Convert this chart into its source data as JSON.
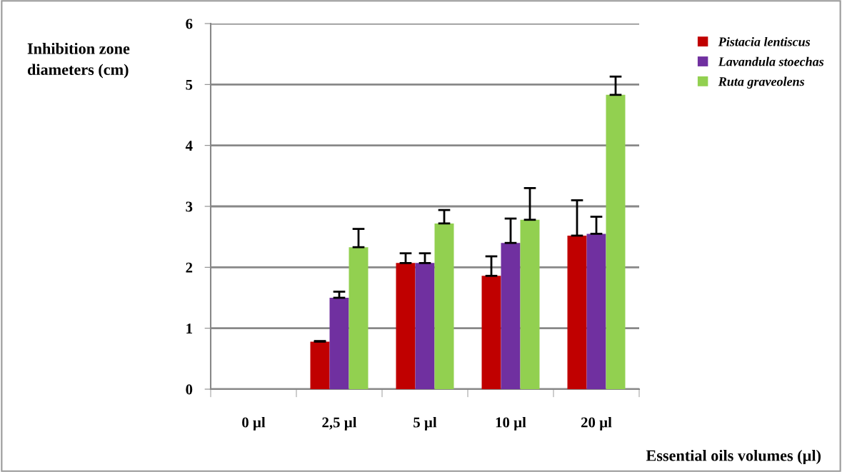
{
  "chart_data": {
    "type": "bar",
    "xlabel": "Essential oils volumes (µl)",
    "ylabel": "Inhibition zone\ndiameters (cm)",
    "categories": [
      "0 µl",
      "2,5 µl",
      "5 µl",
      "10 µl",
      "20 µl"
    ],
    "series": [
      {
        "name": "Pistacia lentiscus",
        "color": "#c00000",
        "values": [
          0,
          0.78,
          2.07,
          1.86,
          2.52
        ],
        "errors": [
          null,
          0.01,
          0.16,
          0.32,
          0.58
        ]
      },
      {
        "name": "Lavandula stoechas",
        "color": "#7030a0",
        "values": [
          0,
          1.5,
          2.07,
          2.4,
          2.55
        ],
        "errors": [
          null,
          0.1,
          0.16,
          0.4,
          0.28
        ]
      },
      {
        "name": "Ruta graveolens",
        "color": "#92d050",
        "values": [
          0,
          2.33,
          2.72,
          2.78,
          4.83
        ],
        "errors": [
          null,
          0.3,
          0.22,
          0.52,
          0.3
        ]
      }
    ],
    "ylim": [
      0,
      6
    ],
    "yticks": [
      0,
      1,
      2,
      3,
      4,
      5,
      6
    ],
    "grid": "y",
    "legend": "top right"
  }
}
